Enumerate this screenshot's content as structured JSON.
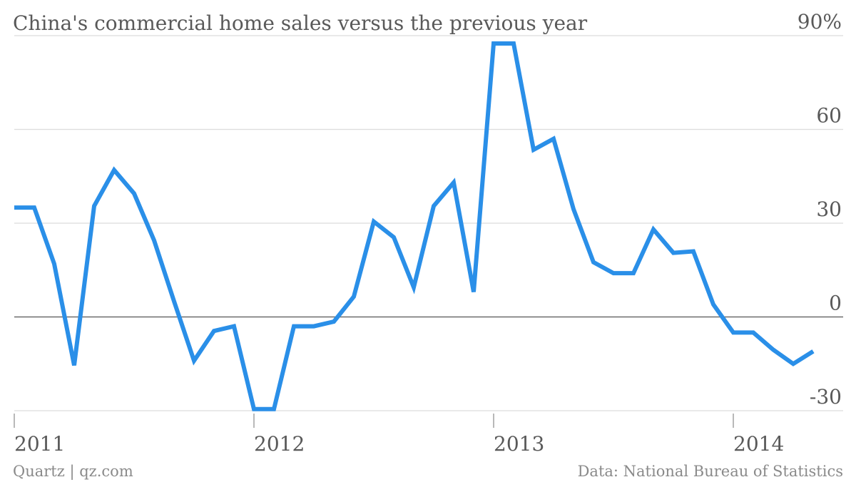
{
  "chart_data": {
    "type": "line",
    "title": "China's commercial home sales versus the previous year",
    "xlabel": "",
    "ylabel": "",
    "ylim": [
      -30,
      90
    ],
    "y_ticks": [
      {
        "value": 90,
        "label": "90%"
      },
      {
        "value": 60,
        "label": "60"
      },
      {
        "value": 30,
        "label": "30"
      },
      {
        "value": 0,
        "label": "0"
      },
      {
        "value": -30,
        "label": "-30"
      }
    ],
    "x_ticks": [
      {
        "value": "2011-01",
        "label": "2011"
      },
      {
        "value": "2012-01",
        "label": "2012"
      },
      {
        "value": "2013-01",
        "label": "2013"
      },
      {
        "value": "2014-01",
        "label": "2014"
      }
    ],
    "grid": true,
    "color": "#2a8fe8",
    "series": [
      {
        "name": "",
        "x": [
          "2011-01",
          "2011-02",
          "2011-03",
          "2011-04",
          "2011-05",
          "2011-06",
          "2011-07",
          "2011-08",
          "2011-09",
          "2011-10",
          "2011-11",
          "2011-12",
          "2012-01",
          "2012-02",
          "2012-03",
          "2012-04",
          "2012-05",
          "2012-06",
          "2012-07",
          "2012-08",
          "2012-09",
          "2012-10",
          "2012-11",
          "2012-12",
          "2013-01",
          "2013-02",
          "2013-03",
          "2013-04",
          "2013-05",
          "2013-06",
          "2013-07",
          "2013-08",
          "2013-09",
          "2013-10",
          "2013-11",
          "2013-12",
          "2014-01",
          "2014-02",
          "2014-03",
          "2014-04",
          "2014-05"
        ],
        "values": [
          35,
          35,
          17,
          -15.5,
          35.5,
          47,
          39.5,
          24.5,
          5,
          -14,
          -4.5,
          -3,
          -29.5,
          -29.5,
          -3,
          -3,
          -1.5,
          6.5,
          30.5,
          25.5,
          9.5,
          35.5,
          43,
          8,
          87.5,
          87.5,
          53.5,
          57,
          34.5,
          17.5,
          14,
          14,
          28,
          20.5,
          21,
          4,
          -5,
          -5,
          -10.5,
          -15,
          -11
        ]
      }
    ]
  },
  "footer": {
    "source_left": "Quartz | qz.com",
    "source_right": "Data: National Bureau of Statistics"
  }
}
